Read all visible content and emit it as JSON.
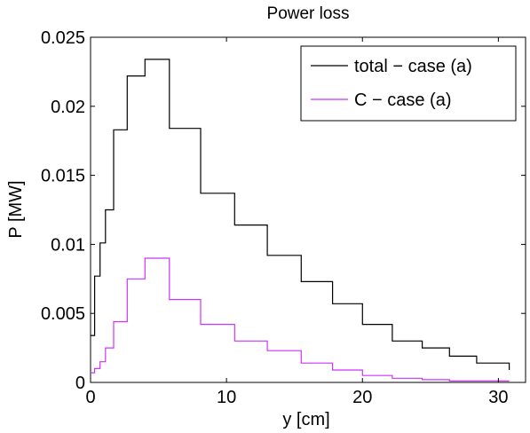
{
  "chart_data": {
    "type": "line",
    "step": true,
    "title": "Power loss",
    "xlabel": "y [cm]",
    "ylabel": "P [MW]",
    "xlim": [
      0,
      32
    ],
    "ylim": [
      0,
      0.025
    ],
    "xticks": [
      "0",
      "10",
      "20",
      "30"
    ],
    "yticks": [
      "0",
      "0.005",
      "0.01",
      "0.015",
      "0.02",
      "0.025"
    ],
    "grid": false,
    "legend_position": "top-right",
    "series": [
      {
        "name": "total − case (a)",
        "color": "#000000",
        "edges": [
          0,
          0.3,
          0.7,
          1.1,
          1.7,
          2.7,
          4.0,
          5.8,
          8.1,
          10.6,
          13.0,
          15.5,
          17.8,
          20.0,
          22.2,
          24.4,
          26.4,
          28.4,
          30.8
        ],
        "values": [
          0.0034,
          0.0077,
          0.0101,
          0.0125,
          0.0183,
          0.0222,
          0.0234,
          0.0184,
          0.0137,
          0.0114,
          0.0092,
          0.0073,
          0.0057,
          0.0042,
          0.003,
          0.0025,
          0.0019,
          0.0014,
          0.0009
        ]
      },
      {
        "name": "C − case (a)",
        "color": "#cc33ff",
        "edges": [
          0,
          0.3,
          0.7,
          1.1,
          1.7,
          2.7,
          4.0,
          5.8,
          8.1,
          10.6,
          13.0,
          15.5,
          17.8,
          20.0,
          22.2,
          24.4,
          26.4,
          28.4,
          30.8
        ],
        "values": [
          0.0007,
          0.001,
          0.0015,
          0.0025,
          0.0044,
          0.0075,
          0.009,
          0.006,
          0.0042,
          0.003,
          0.0023,
          0.0014,
          0.0009,
          0.0005,
          0.0003,
          0.0002,
          0.0001,
          0.0001,
          0.0001
        ]
      }
    ]
  }
}
